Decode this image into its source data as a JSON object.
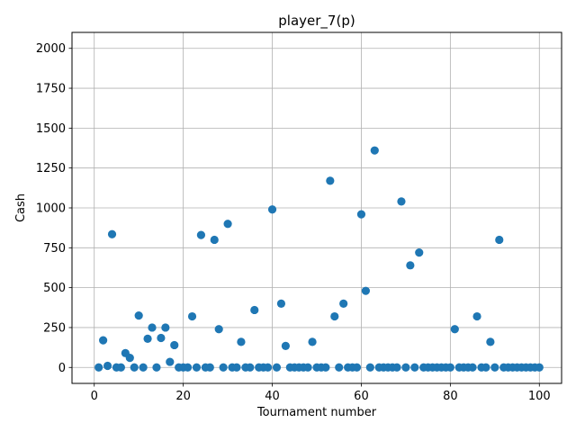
{
  "chart_data": {
    "type": "scatter",
    "title": "player_7(p)",
    "xlabel": "Tournament number",
    "ylabel": "Cash",
    "xlim": [
      -5,
      105
    ],
    "ylim": [
      -100,
      2100
    ],
    "xticks": [
      0,
      20,
      40,
      60,
      80,
      100
    ],
    "yticks": [
      0,
      250,
      500,
      750,
      1000,
      1250,
      1500,
      1750,
      2000
    ],
    "grid": true,
    "marker_color": "#1f77b4",
    "series": [
      {
        "name": "Cash",
        "x": [
          1,
          2,
          3,
          4,
          5,
          6,
          7,
          8,
          9,
          10,
          11,
          12,
          13,
          14,
          15,
          16,
          17,
          18,
          19,
          20,
          21,
          22,
          23,
          24,
          25,
          26,
          27,
          28,
          29,
          30,
          31,
          32,
          33,
          34,
          35,
          36,
          37,
          38,
          39,
          40,
          41,
          42,
          43,
          44,
          45,
          46,
          47,
          48,
          49,
          50,
          51,
          52,
          53,
          54,
          55,
          56,
          57,
          58,
          59,
          60,
          61,
          62,
          63,
          64,
          65,
          66,
          67,
          68,
          69,
          70,
          71,
          72,
          73,
          74,
          75,
          76,
          77,
          78,
          79,
          80,
          81,
          82,
          83,
          84,
          85,
          86,
          87,
          88,
          89,
          90,
          91,
          92,
          93,
          94,
          95,
          96,
          97,
          98,
          99,
          100
        ],
        "y": [
          0,
          170,
          10,
          835,
          0,
          0,
          90,
          60,
          0,
          325,
          0,
          180,
          250,
          0,
          185,
          250,
          35,
          140,
          0,
          0,
          0,
          320,
          0,
          830,
          0,
          0,
          800,
          240,
          0,
          900,
          0,
          0,
          160,
          0,
          0,
          360,
          0,
          0,
          0,
          990,
          0,
          400,
          135,
          0,
          0,
          0,
          0,
          0,
          160,
          0,
          0,
          0,
          1170,
          320,
          0,
          400,
          0,
          0,
          0,
          960,
          480,
          0,
          1360,
          0,
          0,
          0,
          0,
          0,
          1040,
          0,
          640,
          0,
          720,
          0,
          0,
          0,
          0,
          0,
          0,
          0,
          240,
          0,
          0,
          0,
          0,
          320,
          0,
          0,
          160,
          0,
          800,
          0,
          0,
          0,
          0,
          0,
          0,
          0,
          0,
          0
        ]
      }
    ]
  }
}
